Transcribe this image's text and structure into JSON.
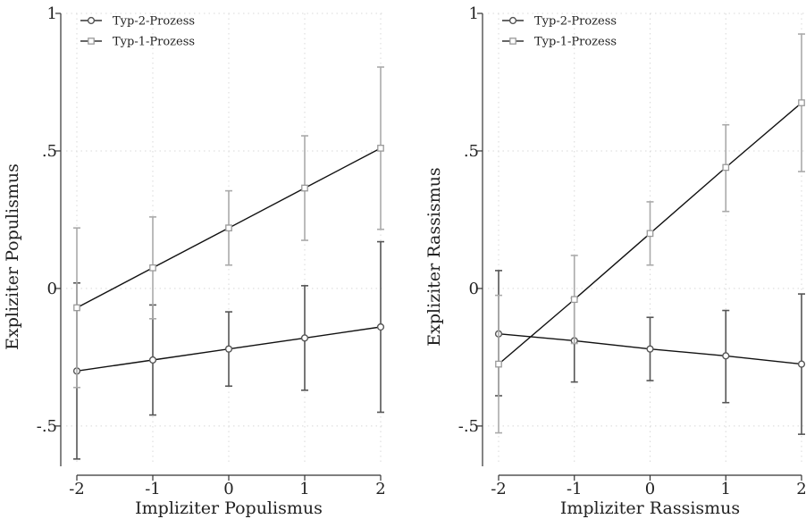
{
  "chart_data": [
    {
      "type": "line",
      "xlabel": "Impliziter Populismus",
      "ylabel": "Expliziter Populismus",
      "xlim": [
        -2,
        2
      ],
      "ylim": [
        -0.64,
        1
      ],
      "x_ticks": [
        "-2",
        "-1",
        "0",
        "1",
        "2"
      ],
      "y_ticks": [
        "-.5",
        "0",
        ".5",
        "1"
      ],
      "grid": true,
      "legend_position": "top-left",
      "series": [
        {
          "name": "Typ-2-Prozess",
          "marker": "circle",
          "color": "#555555",
          "points": [
            {
              "x": -2,
              "y": -0.3,
              "lo": -0.62,
              "hi": 0.02
            },
            {
              "x": -1,
              "y": -0.26,
              "lo": -0.46,
              "hi": -0.06
            },
            {
              "x": 0,
              "y": -0.22,
              "lo": -0.355,
              "hi": -0.085
            },
            {
              "x": 1,
              "y": -0.18,
              "lo": -0.37,
              "hi": 0.01
            },
            {
              "x": 2,
              "y": -0.14,
              "lo": -0.45,
              "hi": 0.17
            }
          ]
        },
        {
          "name": "Typ-1-Prozess",
          "marker": "square",
          "color": "#aaaaaa",
          "points": [
            {
              "x": -2,
              "y": -0.07,
              "lo": -0.36,
              "hi": 0.22
            },
            {
              "x": -1,
              "y": 0.075,
              "lo": -0.11,
              "hi": 0.26
            },
            {
              "x": 0,
              "y": 0.22,
              "lo": 0.085,
              "hi": 0.355
            },
            {
              "x": 1,
              "y": 0.365,
              "lo": 0.175,
              "hi": 0.555
            },
            {
              "x": 2,
              "y": 0.51,
              "lo": 0.215,
              "hi": 0.805
            }
          ]
        }
      ]
    },
    {
      "type": "line",
      "xlabel": "Impliziter Rassismus",
      "ylabel": "Expliziter Rassismus",
      "xlim": [
        -2,
        2
      ],
      "ylim": [
        -0.64,
        1
      ],
      "x_ticks": [
        "-2",
        "-1",
        "0",
        "1",
        "2"
      ],
      "y_ticks": [
        "-.5",
        "0",
        ".5",
        "1"
      ],
      "grid": true,
      "legend_position": "top-left",
      "series": [
        {
          "name": "Typ-2-Prozess",
          "marker": "circle",
          "color": "#555555",
          "points": [
            {
              "x": -2,
              "y": -0.165,
              "lo": -0.39,
              "hi": 0.065
            },
            {
              "x": -1,
              "y": -0.19,
              "lo": -0.34,
              "hi": -0.035
            },
            {
              "x": 0,
              "y": -0.22,
              "lo": -0.335,
              "hi": -0.105
            },
            {
              "x": 1,
              "y": -0.245,
              "lo": -0.415,
              "hi": -0.08
            },
            {
              "x": 2,
              "y": -0.275,
              "lo": -0.53,
              "hi": -0.02
            }
          ]
        },
        {
          "name": "Typ-1-Prozess",
          "marker": "square",
          "color": "#aaaaaa",
          "points": [
            {
              "x": -2,
              "y": -0.275,
              "lo": -0.525,
              "hi": -0.025
            },
            {
              "x": -1,
              "y": -0.04,
              "lo": -0.2,
              "hi": 0.12
            },
            {
              "x": 0,
              "y": 0.2,
              "lo": 0.085,
              "hi": 0.315
            },
            {
              "x": 1,
              "y": 0.44,
              "lo": 0.28,
              "hi": 0.595
            },
            {
              "x": 2,
              "y": 0.675,
              "lo": 0.425,
              "hi": 0.925
            }
          ]
        }
      ]
    }
  ]
}
